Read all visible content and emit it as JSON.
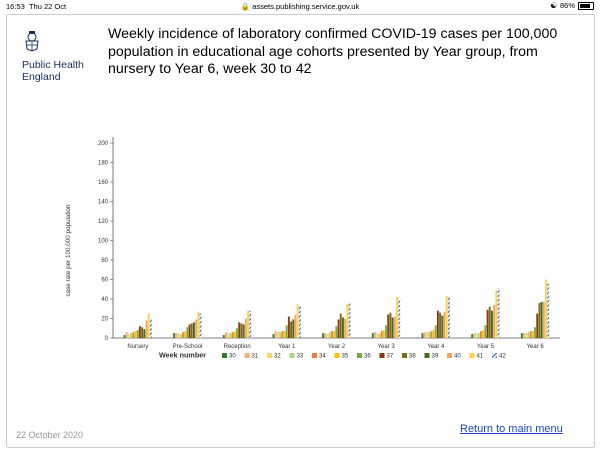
{
  "status": {
    "time": "16:53",
    "date": "Thu 22 Oct",
    "url": "assets.publishing.service.gov.uk",
    "battery": "86%"
  },
  "logo": {
    "org_line1": "Public Health",
    "org_line2": "England"
  },
  "slide_title": "Weekly incidence of laboratory confirmed COVID-19 cases per 100,000 population in educational age cohorts presented by Year group, from nursery to Year 6, week 30 to 42",
  "footer": {
    "date": "22 October 2020",
    "return_link": "Return to main menu"
  },
  "chart_data": {
    "type": "bar",
    "ylabel": "case rate per 100,000 population",
    "xlabel": "",
    "legend_title": "Week number",
    "ylim": [
      0,
      200
    ],
    "yticks": [
      0,
      20,
      40,
      60,
      80,
      100,
      120,
      140,
      160,
      180,
      200
    ],
    "grid": false,
    "legend_position": "bottom",
    "categories": [
      "Nursery",
      "Pre-School",
      "Reception",
      "Year 1",
      "Year 2",
      "Year 3",
      "Year 4",
      "Year 5",
      "Year 6"
    ],
    "series": [
      {
        "name": "30",
        "color": "#2e7d32",
        "values": [
          3,
          5,
          3,
          4,
          5,
          5,
          5,
          4,
          5
        ]
      },
      {
        "name": "31",
        "color": "#f3b07a",
        "values": [
          6,
          5,
          6,
          7,
          5,
          6,
          6,
          5,
          5
        ]
      },
      {
        "name": "32",
        "color": "#f1d86a",
        "values": [
          4,
          5,
          5,
          6,
          4,
          5,
          6,
          5,
          5
        ]
      },
      {
        "name": "33",
        "color": "#a8d68a",
        "values": [
          5,
          4,
          5,
          6,
          6,
          4,
          6,
          5,
          6
        ]
      },
      {
        "name": "34",
        "color": "#e8803a",
        "values": [
          6,
          6,
          6,
          7,
          7,
          7,
          7,
          7,
          7
        ]
      },
      {
        "name": "35",
        "color": "#ffc000",
        "values": [
          7,
          7,
          7,
          7,
          7,
          8,
          8,
          8,
          7
        ]
      },
      {
        "name": "36",
        "color": "#70ad47",
        "values": [
          8,
          11,
          10,
          13,
          12,
          13,
          13,
          13,
          11
        ]
      },
      {
        "name": "37",
        "color": "#8b3a0e",
        "values": [
          12,
          14,
          16,
          22,
          19,
          24,
          28,
          29,
          25
        ]
      },
      {
        "name": "38",
        "color": "#7a6a1a",
        "values": [
          11,
          15,
          15,
          17,
          25,
          26,
          26,
          32,
          36
        ]
      },
      {
        "name": "39",
        "color": "#3f6e22",
        "values": [
          9,
          16,
          14,
          19,
          21,
          21,
          23,
          28,
          37
        ]
      },
      {
        "name": "40",
        "color": "#f4a460",
        "values": [
          18,
          19,
          20,
          24,
          20,
          22,
          27,
          34,
          37
        ]
      },
      {
        "name": "41",
        "color": "#ffd24a",
        "values": [
          25,
          27,
          28,
          35,
          35,
          42,
          43,
          49,
          60
        ]
      },
      {
        "name": "42",
        "color": "#5b7fd6",
        "pattern": "hatched",
        "values": [
          20,
          25,
          28,
          33,
          37,
          40,
          43,
          51,
          56
        ]
      }
    ]
  }
}
